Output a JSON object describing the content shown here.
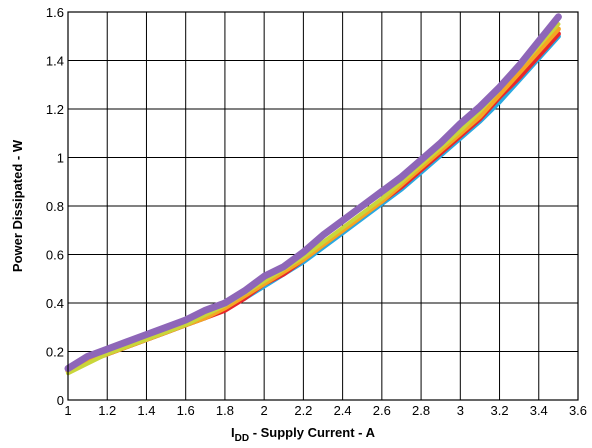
{
  "chart_data": {
    "type": "line",
    "title": "",
    "xlabel": {
      "main": "I",
      "subscript": "DD",
      "rest": " - Supply Current - A"
    },
    "ylabel": "Power Dissipated - W",
    "xlim": [
      1,
      3.6
    ],
    "ylim": [
      0,
      1.6
    ],
    "x_ticks": [
      1,
      1.2,
      1.4,
      1.6,
      1.8,
      2,
      2.2,
      2.4,
      2.6,
      2.8,
      3,
      3.2,
      3.4,
      3.6
    ],
    "x_tick_labels": [
      "1",
      "1.2",
      "1.4",
      "1.6",
      "1.8",
      "2",
      "2.2",
      "2.4",
      "2.6",
      "2.8",
      "3",
      "3.2",
      "3.4",
      "3.6"
    ],
    "y_ticks": [
      0,
      0.2,
      0.4,
      0.6,
      0.8,
      1,
      1.2,
      1.4,
      1.6
    ],
    "y_tick_labels": [
      "0",
      "0.2",
      "0.4",
      "0.6",
      "0.8",
      "1",
      "1.2",
      "1.4",
      "1.6"
    ],
    "grid": true,
    "legend": "none",
    "series": [
      {
        "color": "#29a9e1",
        "x": [
          1,
          1.1,
          1.2,
          1.3,
          1.4,
          1.5,
          1.6,
          1.7,
          1.8,
          1.9,
          2,
          2.1,
          2.2,
          2.3,
          2.4,
          2.5,
          2.6,
          2.7,
          2.8,
          2.9,
          3,
          3.1,
          3.2,
          3.3,
          3.4,
          3.5
        ],
        "values": [
          0.12,
          0.16,
          0.19,
          0.22,
          0.25,
          0.28,
          0.31,
          0.34,
          0.38,
          0.42,
          0.47,
          0.52,
          0.57,
          0.63,
          0.69,
          0.75,
          0.81,
          0.87,
          0.94,
          1.01,
          1.08,
          1.15,
          1.23,
          1.32,
          1.41,
          1.5
        ]
      },
      {
        "color": "#e8262b",
        "x": [
          1,
          1.1,
          1.2,
          1.3,
          1.4,
          1.5,
          1.6,
          1.7,
          1.8,
          1.9,
          2,
          2.1,
          2.2,
          2.3,
          2.4,
          2.5,
          2.6,
          2.7,
          2.8,
          2.9,
          3,
          3.1,
          3.2,
          3.3,
          3.4,
          3.5
        ],
        "values": [
          0.12,
          0.16,
          0.19,
          0.22,
          0.25,
          0.28,
          0.31,
          0.34,
          0.37,
          0.42,
          0.48,
          0.52,
          0.58,
          0.64,
          0.7,
          0.76,
          0.82,
          0.88,
          0.95,
          1.02,
          1.09,
          1.16,
          1.25,
          1.33,
          1.42,
          1.51
        ]
      },
      {
        "color": "#f5a623",
        "x": [
          1,
          1.1,
          1.2,
          1.3,
          1.4,
          1.5,
          1.6,
          1.7,
          1.8,
          1.9,
          2,
          2.1,
          2.2,
          2.3,
          2.4,
          2.5,
          2.6,
          2.7,
          2.8,
          2.9,
          3,
          3.1,
          3.2,
          3.3,
          3.4,
          3.5
        ],
        "values": [
          0.12,
          0.16,
          0.19,
          0.22,
          0.25,
          0.28,
          0.31,
          0.34,
          0.38,
          0.43,
          0.48,
          0.53,
          0.58,
          0.64,
          0.7,
          0.76,
          0.82,
          0.89,
          0.96,
          1.03,
          1.1,
          1.17,
          1.26,
          1.35,
          1.44,
          1.53
        ]
      },
      {
        "color": "#c9d63a",
        "x": [
          1,
          1.1,
          1.2,
          1.3,
          1.4,
          1.5,
          1.6,
          1.7,
          1.8,
          1.9,
          2,
          2.1,
          2.2,
          2.3,
          2.4,
          2.5,
          2.6,
          2.7,
          2.8,
          2.9,
          3,
          3.1,
          3.2,
          3.3,
          3.4,
          3.5
        ],
        "values": [
          0.11,
          0.15,
          0.19,
          0.22,
          0.25,
          0.28,
          0.31,
          0.35,
          0.39,
          0.44,
          0.49,
          0.54,
          0.59,
          0.65,
          0.71,
          0.77,
          0.83,
          0.9,
          0.97,
          1.04,
          1.11,
          1.19,
          1.28,
          1.37,
          1.46,
          1.55
        ]
      },
      {
        "color": "#8e66b8",
        "x": [
          1,
          1.1,
          1.2,
          1.3,
          1.4,
          1.5,
          1.6,
          1.7,
          1.8,
          1.9,
          2,
          2.1,
          2.2,
          2.3,
          2.4,
          2.5,
          2.6,
          2.7,
          2.8,
          2.9,
          3,
          3.1,
          3.2,
          3.3,
          3.4,
          3.5
        ],
        "values": [
          0.13,
          0.18,
          0.21,
          0.24,
          0.27,
          0.3,
          0.33,
          0.37,
          0.4,
          0.45,
          0.51,
          0.55,
          0.61,
          0.68,
          0.74,
          0.8,
          0.86,
          0.92,
          0.99,
          1.06,
          1.14,
          1.21,
          1.29,
          1.38,
          1.48,
          1.58
        ]
      }
    ]
  }
}
